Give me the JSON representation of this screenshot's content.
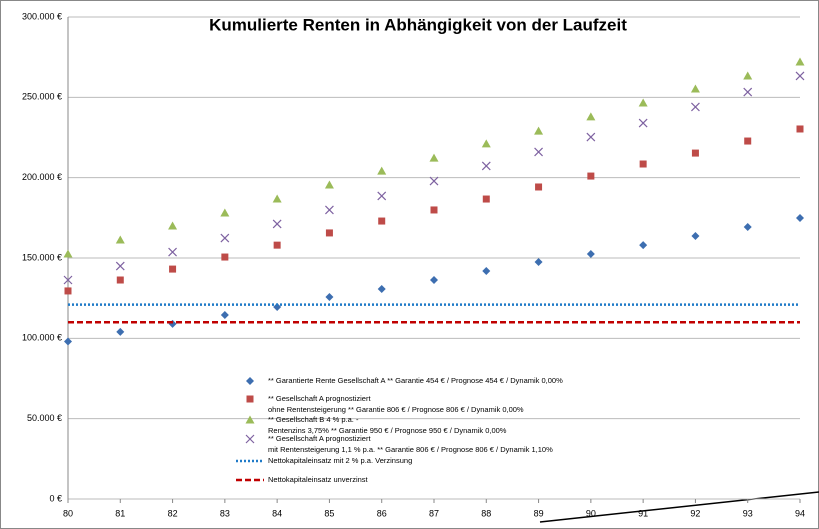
{
  "chart_data": {
    "type": "scatter",
    "title": "Kumulierte Renten in Abhängigkeit von der Laufzeit",
    "x": [
      80,
      81,
      82,
      83,
      84,
      85,
      86,
      87,
      88,
      89,
      90,
      91,
      92,
      93,
      94
    ],
    "xlim": [
      80,
      94
    ],
    "xticks": [
      80,
      81,
      82,
      83,
      84,
      85,
      86,
      87,
      88,
      89,
      90,
      91,
      92,
      93,
      94
    ],
    "ylim": [
      0,
      300000
    ],
    "yticks": [
      {
        "value": 0,
        "label": "0 €"
      },
      {
        "value": 50000,
        "label": "50.000 €"
      },
      {
        "value": 100000,
        "label": "100.000 €"
      },
      {
        "value": 150000,
        "label": "150.000 €"
      },
      {
        "value": 200000,
        "label": "200.000 €"
      },
      {
        "value": 250000,
        "label": "250.000 €"
      },
      {
        "value": 300000,
        "label": "300.000 €"
      }
    ],
    "grid": true,
    "series": [
      {
        "name": "** Garantierte Rente Gesellschaft A ** Garantie 454 € / Prognose 454 € / Dynamik 0,00%",
        "marker": "diamond",
        "color": "#3d6eb0",
        "values": [
          98000,
          104000,
          109000,
          114500,
          119500,
          125700,
          130700,
          136300,
          141900,
          147500,
          152500,
          158000,
          163700,
          169300,
          174900
        ]
      },
      {
        "name": "** Gesellschaft A prognostiziert\nohne Rentensteigerung ** Garantie 806 € / Prognose 806 € / Dynamik 0,00%",
        "marker": "square",
        "color": "#be4b48",
        "values": [
          129500,
          136300,
          143100,
          150600,
          158000,
          165600,
          173000,
          179900,
          186700,
          194200,
          201000,
          208500,
          215300,
          222800,
          230300
        ]
      },
      {
        "name": "** Gesellschaft B 4 % p.a. -\nRentenzins 3,75%  ** Garantie 950 € / Prognose 950 € / Dynamik 0,00%",
        "marker": "triangle",
        "color": "#9bbb59",
        "values": [
          152500,
          161200,
          169900,
          178000,
          186700,
          195400,
          204100,
          212200,
          221000,
          229000,
          237800,
          246500,
          255200,
          263300,
          272000
        ]
      },
      {
        "name": "** Gesellschaft A prognostiziert\nmit Rentensteigerung 1,1 % p.a. ** Garantie 806 € / Prognose 806 € / Dynamik 1,10%",
        "marker": "x",
        "color": "#7e62a1",
        "values": [
          136300,
          145000,
          153700,
          162400,
          171200,
          179900,
          188600,
          197900,
          207300,
          216000,
          225300,
          234000,
          244000,
          253300,
          263300
        ]
      },
      {
        "name": "Nettokapitaleinsatz mit 2 % p.a. Verzinsung",
        "marker": "dotted-line",
        "color": "#1f7ac8",
        "value": 121000
      },
      {
        "name": "Nettokapitaleinsatz unverzinst",
        "marker": "dashed-line",
        "color": "#c00000",
        "value": 110000
      }
    ]
  }
}
